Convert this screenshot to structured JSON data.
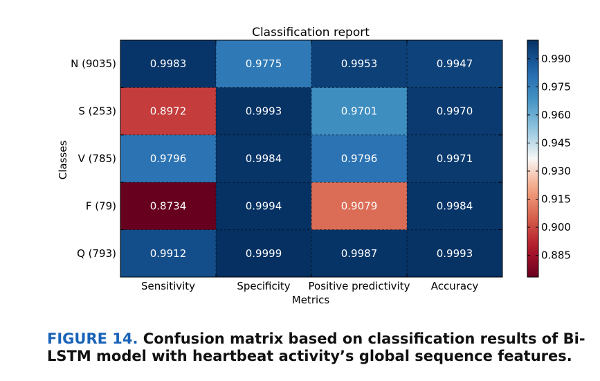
{
  "chart_data": {
    "type": "heatmap",
    "title": "Classification report",
    "xlabel": "Metrics",
    "ylabel": "Classes",
    "columns": [
      "Sensitivity",
      "Specificity",
      "Positive predictivity",
      "Accuracy"
    ],
    "rows": [
      "N (9035)",
      "S (253)",
      "V (785)",
      "F (79)",
      "Q (793)"
    ],
    "values": [
      [
        0.9983,
        0.9775,
        0.9953,
        0.9947
      ],
      [
        0.8972,
        0.9993,
        0.9701,
        0.997
      ],
      [
        0.9796,
        0.9984,
        0.9796,
        0.9971
      ],
      [
        0.8734,
        0.9994,
        0.9079,
        0.9984
      ],
      [
        0.9912,
        0.9999,
        0.9987,
        0.9993
      ]
    ],
    "value_labels": [
      [
        "0.9983",
        "0.9775",
        "0.9953",
        "0.9947"
      ],
      [
        "0.8972",
        "0.9993",
        "0.9701",
        "0.9970"
      ],
      [
        "0.9796",
        "0.9984",
        "0.9796",
        "0.9971"
      ],
      [
        "0.8734",
        "0.9994",
        "0.9079",
        "0.9984"
      ],
      [
        "0.9912",
        "0.9999",
        "0.9987",
        "0.9993"
      ]
    ],
    "colorbar": {
      "range": [
        0.8734,
        0.9999
      ],
      "ticks": [
        0.885,
        0.9,
        0.915,
        0.93,
        0.945,
        0.96,
        0.975,
        0.99
      ],
      "tick_labels": [
        "0.885",
        "0.900",
        "0.915",
        "0.930",
        "0.945",
        "0.960",
        "0.975",
        "0.990"
      ],
      "colormap": "RdBu"
    },
    "grid": true
  },
  "caption": {
    "label": "FIGURE 14.",
    "text": "Confusion matrix based on classification results of Bi-LSTM model with heartbeat activity’s global sequence features."
  },
  "colors": {
    "caption_label": "#1a63b8",
    "text": "#111111"
  }
}
